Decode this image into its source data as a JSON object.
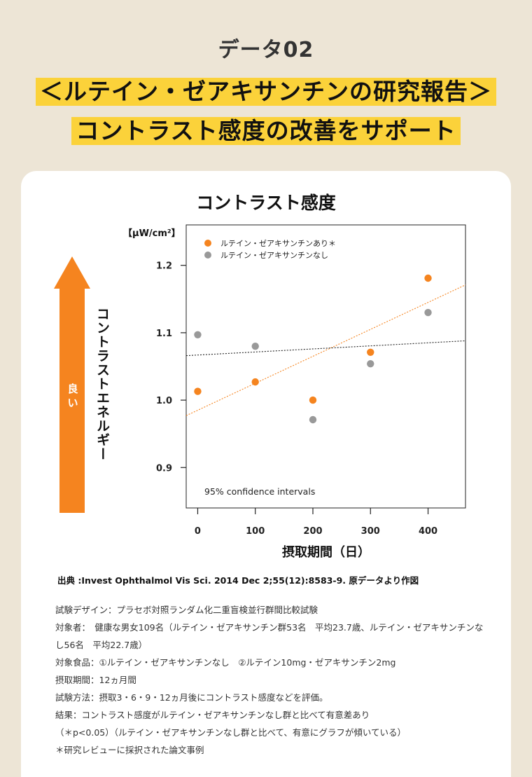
{
  "header": {
    "section_label": "データ02",
    "headline_line1": "＜ルテイン・ゼアキサンチンの研究報告＞",
    "headline_line2": "コントラスト感度の改善をサポート"
  },
  "arrow": {
    "label_chars": [
      "良",
      "い"
    ],
    "color": "#f5841f"
  },
  "chart_data": {
    "type": "scatter",
    "title": "コントラスト感度",
    "ylabel": "コントラストエネルギー",
    "yunit": "【μW/cm²】",
    "xlabel": "摂取期間（日）",
    "xlim": [
      -20,
      465
    ],
    "ylim": [
      0.84,
      1.26
    ],
    "xticks": [
      0,
      100,
      200,
      300,
      400
    ],
    "yticks": [
      0.9,
      1.0,
      1.1,
      1.2
    ],
    "ytick_labels": [
      "0.9",
      "1.0",
      "1.1",
      "1.2"
    ],
    "grid": false,
    "legend": "top-left",
    "annotation": "95% confidence intervals",
    "series": [
      {
        "name": "ルテイン・ゼアキサンチンあり＊",
        "color": "#f5841f",
        "x": [
          0,
          100,
          200,
          300,
          400
        ],
        "y": [
          1.013,
          1.027,
          1.0,
          1.071,
          1.181
        ],
        "trend": [
          [
            -20,
            0.977
          ],
          [
            465,
            1.171
          ]
        ]
      },
      {
        "name": "ルテイン・ゼアキサンチンなし",
        "color": "#999999",
        "x": [
          0,
          100,
          200,
          300,
          400
        ],
        "y": [
          1.097,
          1.08,
          0.971,
          1.054,
          1.13
        ],
        "trend": [
          [
            -20,
            1.066
          ],
          [
            465,
            1.088
          ]
        ]
      }
    ]
  },
  "source": "出典 :Invest Ophthalmol Vis Sci. 2014 Dec  2;55(12):8583-9. 原データより作図",
  "notes": [
    "試験デザイン：プラセボ対照ランダム化二重盲検並行群間比較試験",
    "対象者：　健康な男女109名（ルテイン・ゼアキサンチン群53名　平均23.7歳、ルテイン・ゼアキサンチンな",
    "し56名　平均22.7歳）",
    "対象食品：①ルテイン・ゼアキサンチンなし　②ルテイン10mg・ゼアキサンチン2mg",
    "摂取期間：12ヵ月間",
    "試験方法：摂取3・6・9・12ヵ月後にコントラスト感度などを評価。",
    "結果：コントラスト感度がルテイン・ゼアキサンチンなし群と比べて有意差あり",
    "（＊p<0.05）（ルテイン・ゼアキサンチンなし群と比べて、有意にグラフが傾いている）",
    "＊研究レビューに採択された論文事例"
  ]
}
